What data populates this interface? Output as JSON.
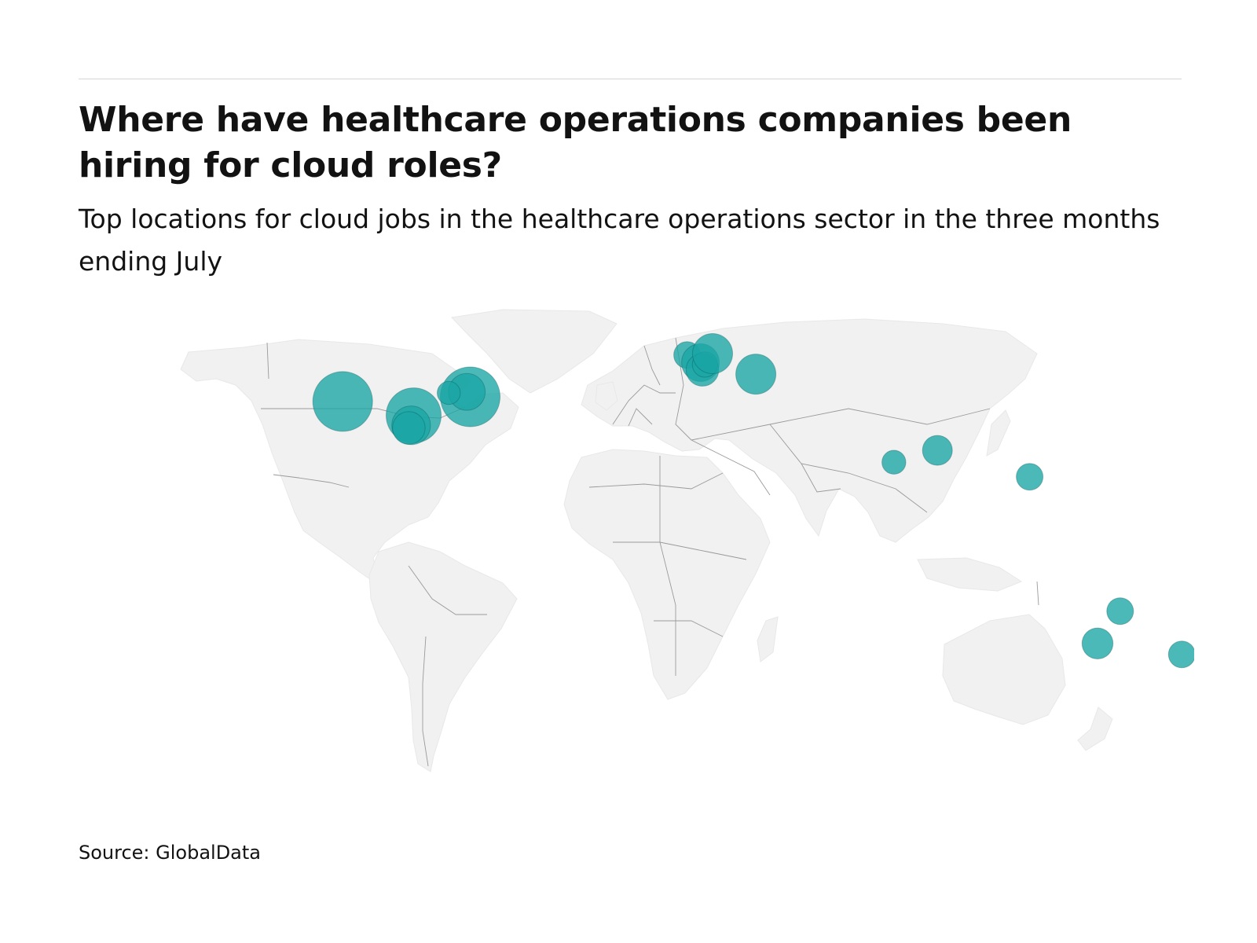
{
  "header": {
    "title": "Where have healthcare operations companies been hiring for cloud roles?",
    "subtitle": "Top locations for cloud jobs in the healthcare operations sector in the three months ending July"
  },
  "footer": {
    "source": "Source: GlobalData"
  },
  "colors": {
    "bubble": "#1aa5a5",
    "bubble_dark": "#0a5353",
    "land": "#f1f1f1",
    "border": "#9a9a9a",
    "rule": "#d6d6d6"
  },
  "chart_data": {
    "type": "bubble-map",
    "points": [
      {
        "lon": -121.9,
        "lat": 37.4,
        "size": 1.0
      },
      {
        "lon": -96.8,
        "lat": 33.2,
        "size": 0.85
      },
      {
        "lon": -76.8,
        "lat": 38.8,
        "size": 1.0
      },
      {
        "lon": -78.0,
        "lat": 40.3,
        "size": 0.38
      },
      {
        "lon": -84.4,
        "lat": 40.0,
        "size": 0.15
      },
      {
        "lon": -97.7,
        "lat": 30.2,
        "size": 0.42
      },
      {
        "lon": -98.5,
        "lat": 29.4,
        "size": 0.3
      },
      {
        "lon": -0.1,
        "lat": 51.5,
        "size": 0.2
      },
      {
        "lon": 4.6,
        "lat": 49.2,
        "size": 0.4
      },
      {
        "lon": 5.3,
        "lat": 47.0,
        "size": 0.3
      },
      {
        "lon": 6.2,
        "lat": 48.6,
        "size": 0.18
      },
      {
        "lon": 8.9,
        "lat": 51.9,
        "size": 0.45
      },
      {
        "lon": 24.2,
        "lat": 45.7,
        "size": 0.45
      },
      {
        "lon": 88.4,
        "lat": 22.6,
        "size": 0.25
      },
      {
        "lon": 73.0,
        "lat": 19.0,
        "size": 0.16
      },
      {
        "lon": 121.0,
        "lat": 14.6,
        "size": 0.2
      },
      {
        "lon": 153.0,
        "lat": -27.5,
        "size": 0.2
      },
      {
        "lon": 145.0,
        "lat": -37.8,
        "size": 0.27
      },
      {
        "lon": 174.8,
        "lat": -41.3,
        "size": 0.2
      }
    ]
  }
}
